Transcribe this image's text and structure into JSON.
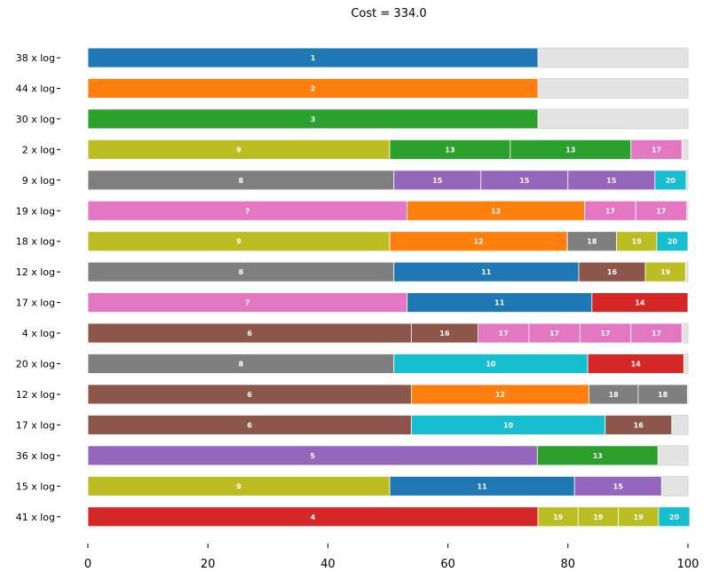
{
  "chart_data": {
    "type": "bar",
    "orientation": "horizontal",
    "stacked": true,
    "title": "Cost = 334.0",
    "xlim": [
      0,
      100
    ],
    "xticks": [
      0,
      20,
      40,
      60,
      80,
      100
    ],
    "grid": false,
    "legend": "none",
    "colors": {
      "1": "#1f77b4",
      "2": "#ff7f0e",
      "3": "#2ca02c",
      "4": "#d62728",
      "5": "#9467bd",
      "6": "#8c564b",
      "7": "#e377c2",
      "8": "#7f7f7f",
      "9": "#bcbd22",
      "10": "#17becf",
      "11": "#1f77b4",
      "12": "#ff7f0e",
      "13": "#2ca02c",
      "14": "#d62728",
      "15": "#9467bd",
      "16": "#8c564b",
      "17": "#e377c2",
      "18": "#7f7f7f",
      "19": "#bcbd22",
      "20": "#17becf",
      "waste": "#e3e3e3"
    },
    "rows": [
      {
        "label": "38 x log",
        "segments": [
          {
            "id": "1",
            "value": 75
          }
        ]
      },
      {
        "label": "44 x log",
        "segments": [
          {
            "id": "2",
            "value": 75
          }
        ]
      },
      {
        "label": "30 x log",
        "segments": [
          {
            "id": "3",
            "value": 75
          }
        ]
      },
      {
        "label": "2 x log",
        "segments": [
          {
            "id": "9",
            "value": 50.3
          },
          {
            "id": "13",
            "value": 20.1
          },
          {
            "id": "13",
            "value": 20.1
          },
          {
            "id": "17",
            "value": 8.5
          }
        ]
      },
      {
        "label": "9 x log",
        "segments": [
          {
            "id": "8",
            "value": 51
          },
          {
            "id": "15",
            "value": 14.5
          },
          {
            "id": "15",
            "value": 14.5
          },
          {
            "id": "15",
            "value": 14.5
          },
          {
            "id": "20",
            "value": 5.2
          }
        ]
      },
      {
        "label": "19 x log",
        "segments": [
          {
            "id": "7",
            "value": 53.2
          },
          {
            "id": "12",
            "value": 29.6
          },
          {
            "id": "17",
            "value": 8.5
          },
          {
            "id": "17",
            "value": 8.5
          }
        ]
      },
      {
        "label": "18 x log",
        "segments": [
          {
            "id": "9",
            "value": 50.3
          },
          {
            "id": "12",
            "value": 29.6
          },
          {
            "id": "18",
            "value": 8.2
          },
          {
            "id": "19",
            "value": 6.7
          },
          {
            "id": "20",
            "value": 5.2
          }
        ]
      },
      {
        "label": "12 x log",
        "segments": [
          {
            "id": "8",
            "value": 51
          },
          {
            "id": "11",
            "value": 30.8
          },
          {
            "id": "16",
            "value": 11.1
          },
          {
            "id": "19",
            "value": 6.7
          }
        ]
      },
      {
        "label": "17 x log",
        "segments": [
          {
            "id": "7",
            "value": 53.2
          },
          {
            "id": "11",
            "value": 30.8
          },
          {
            "id": "14",
            "value": 16
          }
        ]
      },
      {
        "label": "4 x log",
        "segments": [
          {
            "id": "6",
            "value": 53.9
          },
          {
            "id": "16",
            "value": 11.1
          },
          {
            "id": "17",
            "value": 8.5
          },
          {
            "id": "17",
            "value": 8.5
          },
          {
            "id": "17",
            "value": 8.5
          },
          {
            "id": "17",
            "value": 8.5
          }
        ]
      },
      {
        "label": "20 x log",
        "segments": [
          {
            "id": "8",
            "value": 51
          },
          {
            "id": "10",
            "value": 32.3
          },
          {
            "id": "14",
            "value": 16
          }
        ]
      },
      {
        "label": "12 x log",
        "segments": [
          {
            "id": "6",
            "value": 53.9
          },
          {
            "id": "12",
            "value": 29.6
          },
          {
            "id": "18",
            "value": 8.2
          },
          {
            "id": "18",
            "value": 8.2
          }
        ]
      },
      {
        "label": "17 x log",
        "segments": [
          {
            "id": "6",
            "value": 53.9
          },
          {
            "id": "10",
            "value": 32.3
          },
          {
            "id": "16",
            "value": 11.1
          }
        ]
      },
      {
        "label": "36 x log",
        "segments": [
          {
            "id": "5",
            "value": 74.9
          },
          {
            "id": "13",
            "value": 20.1
          }
        ]
      },
      {
        "label": "15 x log",
        "segments": [
          {
            "id": "9",
            "value": 50.3
          },
          {
            "id": "11",
            "value": 30.8
          },
          {
            "id": "15",
            "value": 14.5
          }
        ]
      },
      {
        "label": "41 x log",
        "segments": [
          {
            "id": "4",
            "value": 75
          },
          {
            "id": "19",
            "value": 6.7
          },
          {
            "id": "19",
            "value": 6.7
          },
          {
            "id": "19",
            "value": 6.7
          },
          {
            "id": "20",
            "value": 5.2
          }
        ]
      }
    ]
  }
}
